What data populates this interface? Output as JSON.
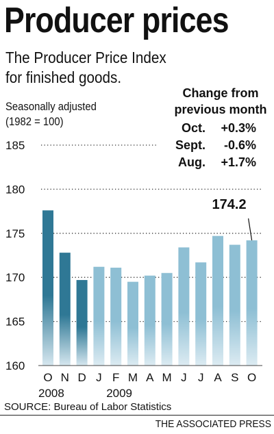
{
  "header": {
    "title": "Producer prices",
    "subtitle_line1": "The Producer Price Index",
    "subtitle_line2": "for finished goods.",
    "note_line1": "Seasonally adjusted",
    "note_line2": "(1982 = 100)"
  },
  "change_table": {
    "heading_line1": "Change from",
    "heading_line2": "previous month",
    "rows": [
      {
        "month": "Oct.",
        "value": "+0.3%"
      },
      {
        "month": "Sept.",
        "value": "-0.6%"
      },
      {
        "month": "Aug.",
        "value": "+1.7%"
      }
    ]
  },
  "footer": {
    "source": "SOURCE: Bureau of Labor Statistics",
    "credit": "THE ASSOCIATED PRESS"
  },
  "chart_data": {
    "type": "bar",
    "categories": [
      "O",
      "N",
      "D",
      "J",
      "F",
      "M",
      "A",
      "M",
      "J",
      "J",
      "A",
      "S",
      "O"
    ],
    "year_labels": [
      "2008",
      "2009"
    ],
    "values": [
      177.6,
      172.8,
      169.7,
      171.2,
      171.1,
      169.5,
      170.2,
      170.5,
      173.4,
      171.7,
      174.7,
      173.7,
      174.2
    ],
    "emphasized_count": 3,
    "callout": "174.2",
    "yticks": [
      "160",
      "165",
      "170",
      "175",
      "180",
      "185"
    ],
    "ylim": [
      160,
      185
    ],
    "colors": {
      "dark_bar_top": "#2f7895",
      "dark_bar_bottom": "#d6e7ef",
      "light_bar_top": "#8ebfd4",
      "light_bar_bottom": "#dcebf2"
    }
  }
}
